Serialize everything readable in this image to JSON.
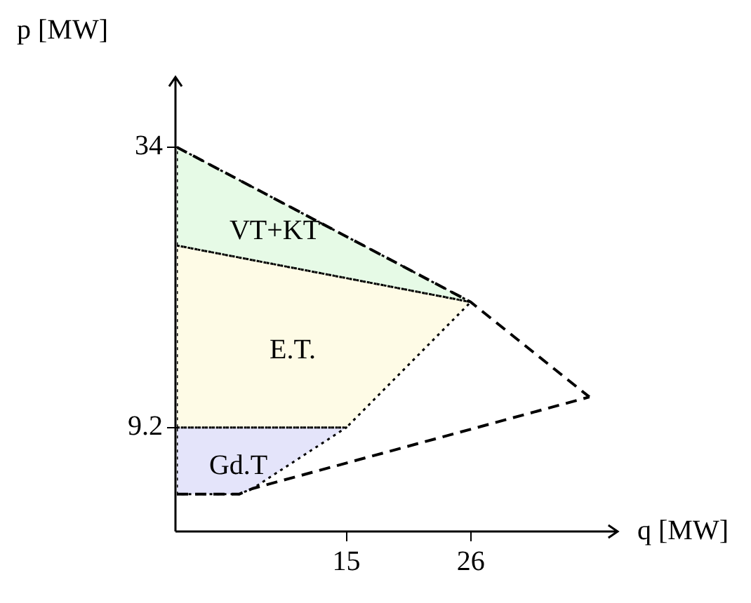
{
  "chart_data": {
    "type": "area",
    "xlabel": "q [MW]",
    "ylabel": "p [MW]",
    "xlim": [
      0,
      39
    ],
    "ylim": [
      0,
      40.2
    ],
    "xticks": [
      15,
      26
    ],
    "yticks": [
      9.2,
      34
    ],
    "grid": false,
    "series": [
      {
        "name": "VT+KT",
        "type": "area",
        "color": "#e6fae6",
        "line_style": "dotted",
        "x": [
          0,
          26,
          0
        ],
        "values": [
          34,
          20.3,
          25.3
        ]
      },
      {
        "name": "E.T.",
        "type": "area",
        "color": "#fefbe6",
        "line_style": "dotted",
        "x": [
          0,
          26,
          15,
          0
        ],
        "values": [
          25.3,
          20.3,
          9.2,
          9.2
        ]
      },
      {
        "name": "Gd.T",
        "type": "area",
        "color": "#e4e4fa",
        "line_style": "dotted",
        "x": [
          0,
          15,
          6.7,
          5.5,
          0
        ],
        "values": [
          9.2,
          9.2,
          3.8,
          3.3,
          3.3
        ]
      },
      {
        "type": "line",
        "color": "#000000",
        "line_style": "dashed",
        "x": [
          0,
          26,
          36.5
        ],
        "values": [
          34,
          20.3,
          11.9
        ]
      },
      {
        "type": "line",
        "color": "#000000",
        "line_style": "dashed",
        "x": [
          0,
          5.5,
          6.7,
          36.5
        ],
        "values": [
          3.3,
          3.3,
          3.8,
          11.9
        ]
      }
    ]
  }
}
